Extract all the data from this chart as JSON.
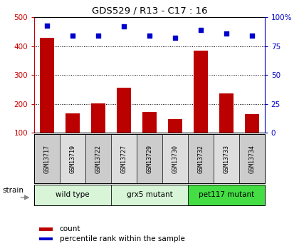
{
  "title": "GDS529 / R13 - C17 : 16",
  "samples": [
    "GSM13717",
    "GSM13719",
    "GSM13722",
    "GSM13727",
    "GSM13729",
    "GSM13730",
    "GSM13732",
    "GSM13733",
    "GSM13734"
  ],
  "counts": [
    430,
    168,
    202,
    257,
    173,
    148,
    385,
    237,
    165
  ],
  "percentile_ranks": [
    93,
    84,
    84,
    92,
    84,
    82,
    89,
    86,
    84
  ],
  "groups": [
    {
      "label": "wild type",
      "indices": [
        0,
        1,
        2
      ],
      "color": "#d8f5d8"
    },
    {
      "label": "grx5 mutant",
      "indices": [
        3,
        4,
        5
      ],
      "color": "#d8f5d8"
    },
    {
      "label": "pet117 mutant",
      "indices": [
        6,
        7,
        8
      ],
      "color": "#44dd44"
    }
  ],
  "sample_bg_colors": [
    "#cccccc",
    "#dddddd",
    "#cccccc",
    "#dddddd",
    "#cccccc",
    "#dddddd",
    "#cccccc",
    "#dddddd",
    "#cccccc"
  ],
  "bar_color": "#bb0000",
  "dot_color": "#0000cc",
  "left_axis_color": "#cc0000",
  "right_axis_color": "#0000cc",
  "ylim_left": [
    100,
    500
  ],
  "ylim_right": [
    0,
    100
  ],
  "left_yticks": [
    100,
    200,
    300,
    400,
    500
  ],
  "right_yticks": [
    0,
    25,
    50,
    75,
    100
  ],
  "right_yticklabels": [
    "0",
    "25",
    "50",
    "75",
    "100%"
  ],
  "grid_values": [
    200,
    300,
    400
  ],
  "strain_label": "strain",
  "legend_count_label": "count",
  "legend_percentile_label": "percentile rank within the sample",
  "bg_color_plot": "#ffffff",
  "figsize": [
    4.2,
    3.45
  ],
  "dpi": 100
}
